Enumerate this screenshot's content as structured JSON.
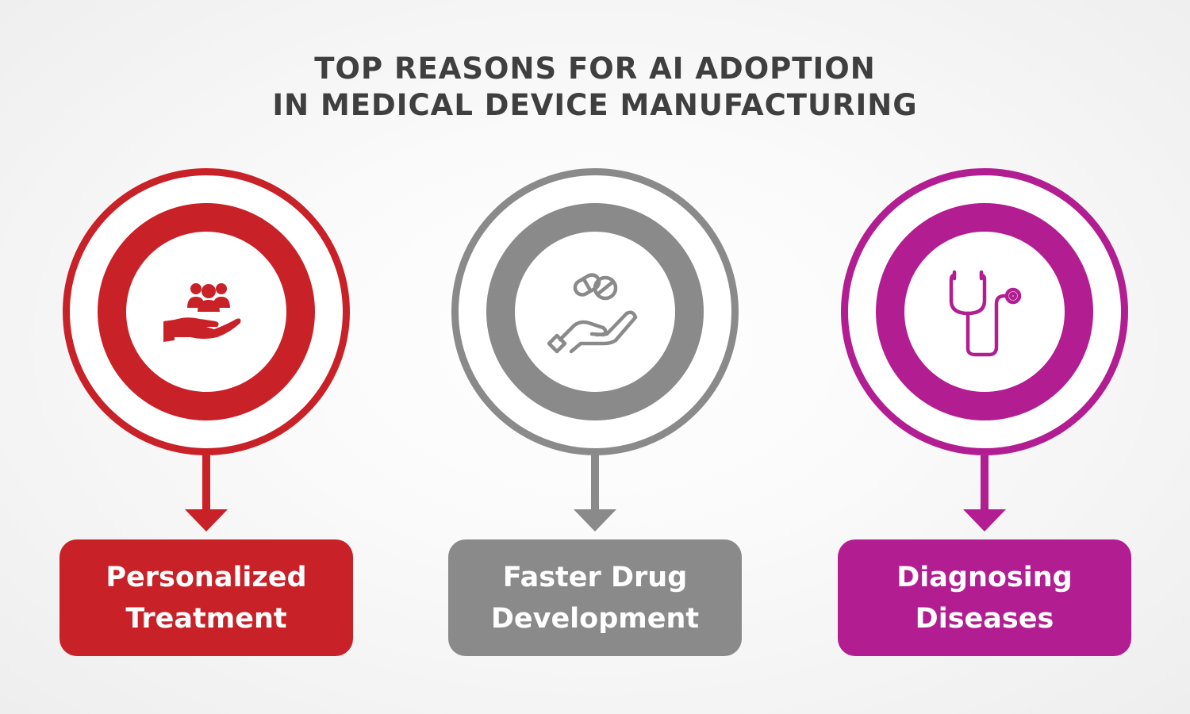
{
  "title": {
    "line1": "TOP REASONS FOR AI ADOPTION",
    "line2": "IN MEDICAL DEVICE MANUFACTURING"
  },
  "colors": {
    "red": "#c82127",
    "gray": "#8a8a8a",
    "purple": "#b21e91",
    "title": "#3f3f3f"
  },
  "items": [
    {
      "icon": "hand-holding-people-icon",
      "label_line1": "Personalized",
      "label_line2": "Treatment"
    },
    {
      "icon": "hand-holding-pills-icon",
      "label_line1": "Faster Drug",
      "label_line2": "Development"
    },
    {
      "icon": "stethoscope-icon",
      "label_line1": "Diagnosing",
      "label_line2": "Diseases"
    }
  ]
}
